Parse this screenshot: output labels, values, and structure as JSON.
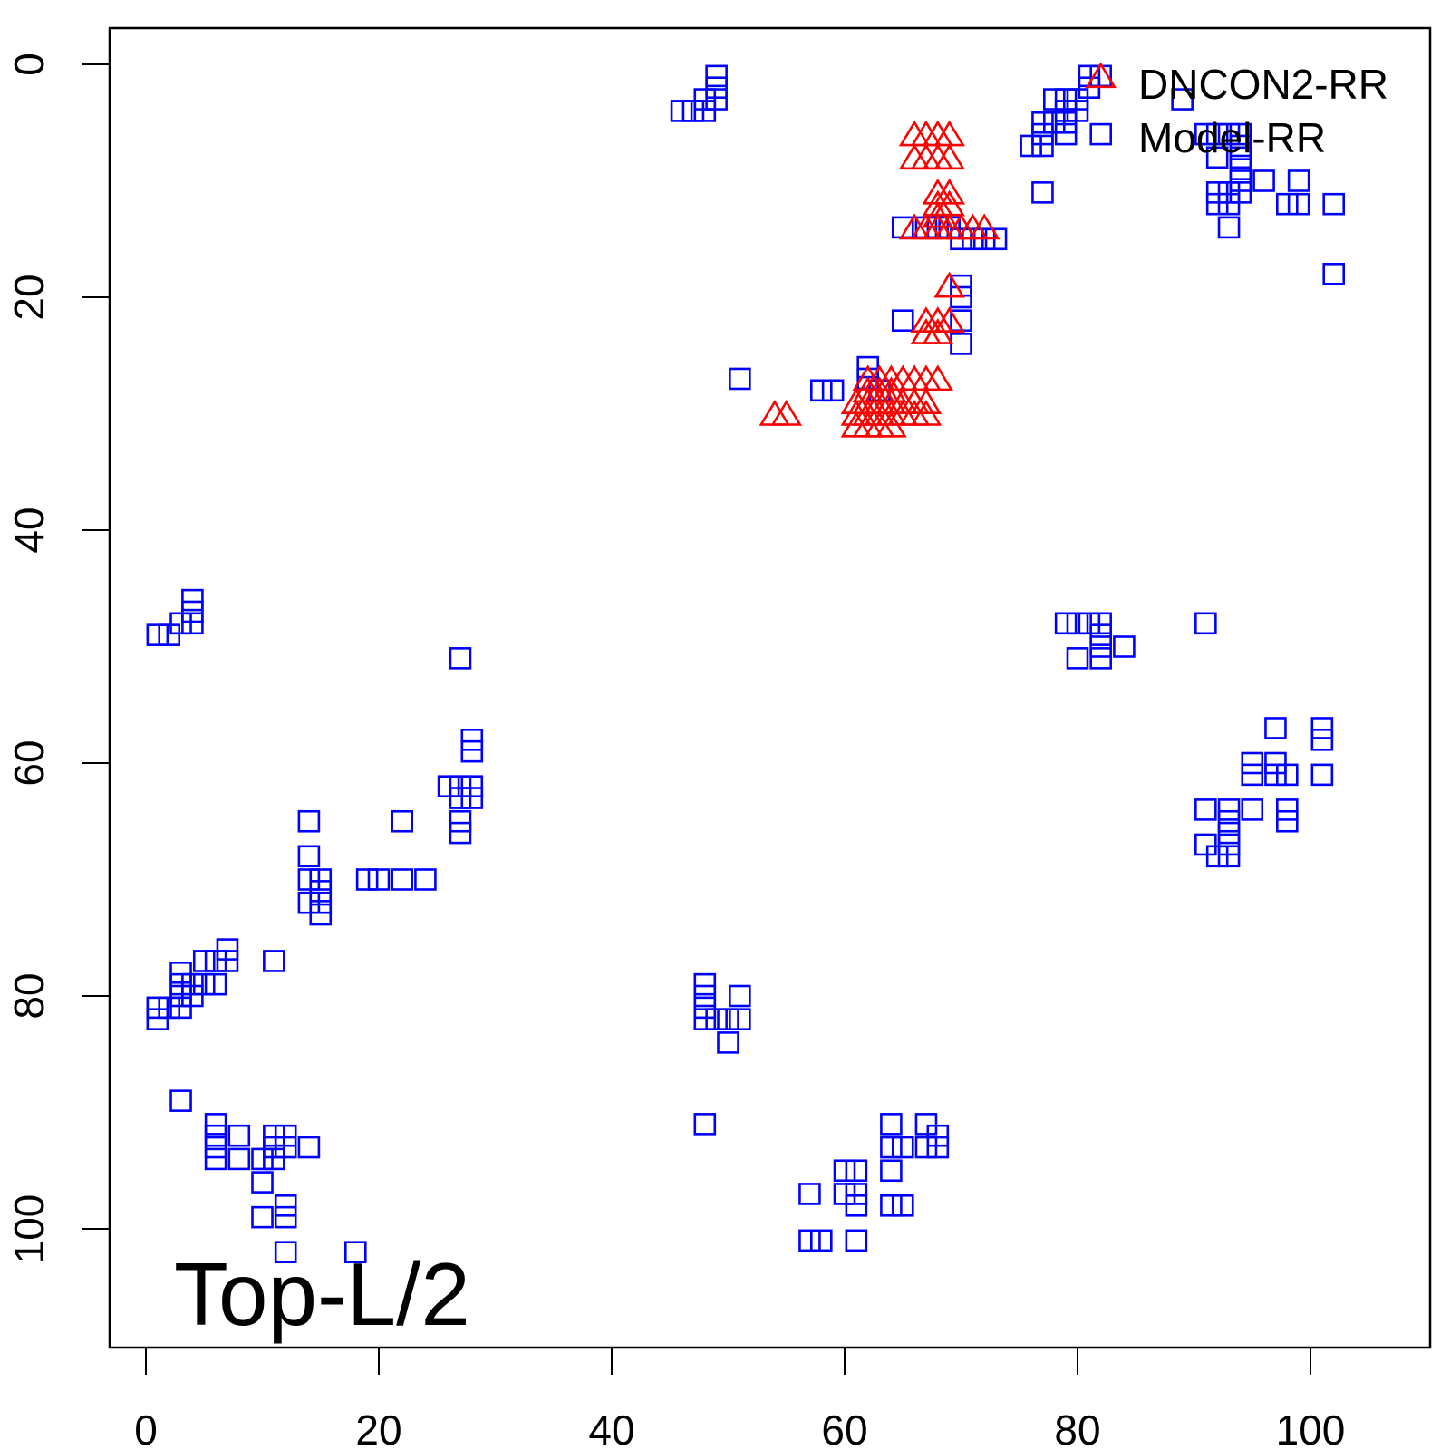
{
  "chart_data": {
    "type": "scatter",
    "title": "",
    "annotation": "Top-L/2",
    "xlabel": "",
    "ylabel": "",
    "xlim": [
      -3.2,
      110.2
    ],
    "ylim": [
      110.1,
      -3.1
    ],
    "y_reversed": true,
    "grid": false,
    "x_ticks": [
      0,
      20,
      40,
      60,
      80,
      100
    ],
    "y_ticks": [
      0,
      20,
      40,
      60,
      80,
      100
    ],
    "x_tick_labels": [
      "0",
      "20",
      "40",
      "60",
      "80",
      "100"
    ],
    "y_tick_labels": [
      "0",
      "20",
      "40",
      "60",
      "80",
      "100"
    ],
    "legend": {
      "placement": "top-right",
      "entries": [
        "DNCON2-RR",
        "Model-RR"
      ]
    },
    "series": [
      {
        "name": "DNCON2-RR",
        "marker": "square",
        "color": "#0000FF",
        "points": [
          [
            49,
            1
          ],
          [
            49,
            2
          ],
          [
            48,
            3
          ],
          [
            49,
            3
          ],
          [
            48,
            4
          ],
          [
            47,
            4
          ],
          [
            46,
            4
          ],
          [
            51,
            27
          ],
          [
            58,
            28
          ],
          [
            59,
            28
          ],
          [
            65,
            14
          ],
          [
            65,
            22
          ],
          [
            70,
            19
          ],
          [
            70,
            20
          ],
          [
            70,
            22
          ],
          [
            70,
            24
          ],
          [
            67,
            14
          ],
          [
            68,
            14
          ],
          [
            69,
            14
          ],
          [
            70,
            15
          ],
          [
            71,
            15
          ],
          [
            72,
            15
          ],
          [
            73,
            15
          ],
          [
            62,
            26
          ],
          [
            62,
            27
          ],
          [
            63,
            28
          ],
          [
            82,
            1
          ],
          [
            81,
            1
          ],
          [
            81,
            2
          ],
          [
            80,
            3
          ],
          [
            79,
            3
          ],
          [
            78,
            3
          ],
          [
            79,
            4
          ],
          [
            80,
            4
          ],
          [
            78,
            5
          ],
          [
            79,
            5
          ],
          [
            77,
            5
          ],
          [
            77,
            6
          ],
          [
            79,
            6
          ],
          [
            76,
            7
          ],
          [
            77,
            7
          ],
          [
            82,
            6
          ],
          [
            77,
            11
          ],
          [
            89,
            3
          ],
          [
            91,
            6
          ],
          [
            92,
            6
          ],
          [
            93,
            6
          ],
          [
            94,
            6
          ],
          [
            92,
            8
          ],
          [
            94,
            7
          ],
          [
            94,
            8
          ],
          [
            94,
            9
          ],
          [
            94,
            10
          ],
          [
            96,
            10
          ],
          [
            99,
            10
          ],
          [
            92,
            11
          ],
          [
            93,
            11
          ],
          [
            94,
            11
          ],
          [
            92,
            12
          ],
          [
            93,
            12
          ],
          [
            98,
            12
          ],
          [
            99,
            12
          ],
          [
            102,
            12
          ],
          [
            93,
            14
          ],
          [
            102,
            18
          ],
          [
            79,
            48
          ],
          [
            80,
            48
          ],
          [
            81,
            48
          ],
          [
            82,
            48
          ],
          [
            82,
            49
          ],
          [
            82,
            50
          ],
          [
            84,
            50
          ],
          [
            80,
            51
          ],
          [
            82,
            51
          ],
          [
            91,
            48
          ],
          [
            97,
            57
          ],
          [
            101,
            57
          ],
          [
            101,
            58
          ],
          [
            95,
            60
          ],
          [
            97,
            60
          ],
          [
            95,
            61
          ],
          [
            97,
            61
          ],
          [
            98,
            61
          ],
          [
            101,
            61
          ],
          [
            91,
            64
          ],
          [
            93,
            64
          ],
          [
            95,
            64
          ],
          [
            98,
            64
          ],
          [
            93,
            65
          ],
          [
            98,
            65
          ],
          [
            93,
            66
          ],
          [
            91,
            67
          ],
          [
            93,
            67
          ],
          [
            92,
            68
          ],
          [
            93,
            68
          ],
          [
            1,
            49
          ],
          [
            2,
            49
          ],
          [
            3,
            48
          ],
          [
            4,
            48
          ],
          [
            4,
            47
          ],
          [
            4,
            46
          ],
          [
            27,
            51
          ],
          [
            28,
            58
          ],
          [
            28,
            59
          ],
          [
            26,
            62
          ],
          [
            27,
            62
          ],
          [
            28,
            62
          ],
          [
            27,
            63
          ],
          [
            28,
            63
          ],
          [
            27,
            65
          ],
          [
            27,
            66
          ],
          [
            14,
            65
          ],
          [
            22,
            65
          ],
          [
            14,
            68
          ],
          [
            14,
            70
          ],
          [
            15,
            70
          ],
          [
            15,
            71
          ],
          [
            14,
            72
          ],
          [
            15,
            72
          ],
          [
            15,
            73
          ],
          [
            19,
            70
          ],
          [
            20,
            70
          ],
          [
            22,
            70
          ],
          [
            24,
            70
          ],
          [
            7,
            76
          ],
          [
            5,
            77
          ],
          [
            6,
            77
          ],
          [
            7,
            77
          ],
          [
            11,
            77
          ],
          [
            3,
            78
          ],
          [
            3,
            79
          ],
          [
            4,
            79
          ],
          [
            5,
            79
          ],
          [
            6,
            79
          ],
          [
            3,
            80
          ],
          [
            4,
            80
          ],
          [
            1,
            81
          ],
          [
            2,
            81
          ],
          [
            3,
            81
          ],
          [
            1,
            82
          ],
          [
            3,
            89
          ],
          [
            6,
            91
          ],
          [
            6,
            92
          ],
          [
            6,
            93
          ],
          [
            8,
            92
          ],
          [
            11,
            92
          ],
          [
            12,
            92
          ],
          [
            6,
            94
          ],
          [
            8,
            94
          ],
          [
            10,
            94
          ],
          [
            11,
            94
          ],
          [
            11,
            93
          ],
          [
            12,
            93
          ],
          [
            14,
            93
          ],
          [
            10,
            96
          ],
          [
            10,
            99
          ],
          [
            12,
            98
          ],
          [
            12,
            99
          ],
          [
            12,
            102
          ],
          [
            18,
            102
          ],
          [
            48,
            79
          ],
          [
            48,
            80
          ],
          [
            48,
            81
          ],
          [
            48,
            82
          ],
          [
            49,
            82
          ],
          [
            50,
            82
          ],
          [
            51,
            80
          ],
          [
            51,
            82
          ],
          [
            50,
            84
          ],
          [
            48,
            91
          ],
          [
            57,
            97
          ],
          [
            60,
            95
          ],
          [
            61,
            95
          ],
          [
            60,
            97
          ],
          [
            61,
            97
          ],
          [
            61,
            98
          ],
          [
            57,
            101
          ],
          [
            58,
            101
          ],
          [
            61,
            101
          ],
          [
            64,
            91
          ],
          [
            64,
            93
          ],
          [
            65,
            93
          ],
          [
            67,
            91
          ],
          [
            67,
            93
          ],
          [
            68,
            92
          ],
          [
            68,
            93
          ],
          [
            64,
            95
          ],
          [
            64,
            98
          ],
          [
            65,
            98
          ]
        ]
      },
      {
        "name": "Model-RR",
        "marker": "triangle",
        "color": "#FF0000",
        "points": [
          [
            66,
            6
          ],
          [
            67,
            6
          ],
          [
            68,
            6
          ],
          [
            69,
            6
          ],
          [
            66,
            8
          ],
          [
            67,
            8
          ],
          [
            68,
            8
          ],
          [
            69,
            8
          ],
          [
            68,
            11
          ],
          [
            69,
            11
          ],
          [
            68,
            12
          ],
          [
            69,
            12
          ],
          [
            68,
            13
          ],
          [
            66,
            14
          ],
          [
            67,
            14
          ],
          [
            68,
            14
          ],
          [
            69,
            14
          ],
          [
            70,
            14
          ],
          [
            71,
            14
          ],
          [
            72,
            14
          ],
          [
            82,
            1
          ],
          [
            69,
            19
          ],
          [
            67,
            22
          ],
          [
            68,
            22
          ],
          [
            69,
            22
          ],
          [
            67,
            23
          ],
          [
            68,
            23
          ],
          [
            54,
            30
          ],
          [
            55,
            30
          ],
          [
            62,
            27
          ],
          [
            63,
            27
          ],
          [
            64,
            27
          ],
          [
            65,
            27
          ],
          [
            66,
            27
          ],
          [
            67,
            27
          ],
          [
            68,
            27
          ],
          [
            62,
            28
          ],
          [
            63,
            28
          ],
          [
            64,
            28
          ],
          [
            61,
            29
          ],
          [
            62,
            29
          ],
          [
            63,
            29
          ],
          [
            64,
            29
          ],
          [
            65,
            29
          ],
          [
            66,
            29
          ],
          [
            67,
            29
          ],
          [
            61,
            30
          ],
          [
            62,
            30
          ],
          [
            63,
            30
          ],
          [
            64,
            30
          ],
          [
            65,
            30
          ],
          [
            66,
            30
          ],
          [
            67,
            30
          ],
          [
            61,
            31
          ],
          [
            62,
            31
          ],
          [
            63,
            31
          ],
          [
            64,
            31
          ]
        ]
      }
    ]
  }
}
